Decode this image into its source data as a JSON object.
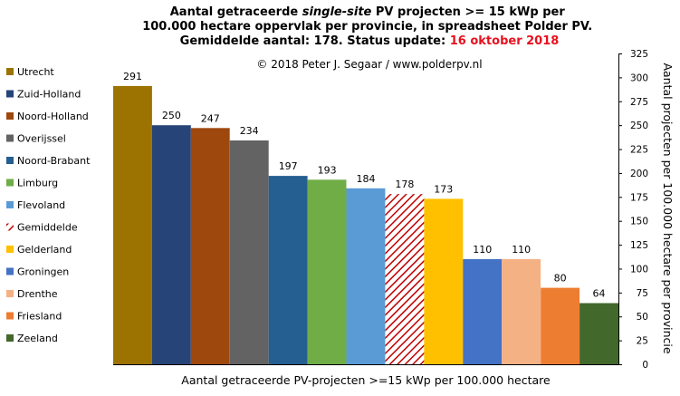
{
  "chart_data": {
    "type": "bar",
    "title_lines": [
      {
        "parts": [
          {
            "text": "Aantal getraceerde ",
            "style": "normal"
          },
          {
            "text": "single-site",
            "style": "italic"
          },
          {
            "text": " PV projecten >= 15 kWp per",
            "style": "normal"
          }
        ]
      },
      {
        "parts": [
          {
            "text": "100.000 hectare oppervlak per provincie, in spreadsheet Polder PV.",
            "style": "normal"
          }
        ]
      },
      {
        "parts": [
          {
            "text": "Gemiddelde aantal: 178. Status update: ",
            "style": "normal"
          },
          {
            "text": "16 oktober 2018",
            "style": "red"
          }
        ]
      }
    ],
    "annotation": "© 2018 Peter J. Segaar / www.polderpv.nl",
    "xlabel": "Aantal getraceerde PV-projecten >=15 kWp per 100.000 hectare",
    "ylabel": "Aantal projecten per 100.000 hectare per provincie",
    "ylim": [
      0,
      325
    ],
    "yticks": [
      0,
      25,
      50,
      75,
      100,
      125,
      150,
      175,
      200,
      225,
      250,
      275,
      300,
      325
    ],
    "y_axis_side": "right",
    "legend_position": "left",
    "grid": false,
    "series": [
      {
        "name": "Utrecht",
        "value": 291,
        "color": "#9c7300",
        "pattern": "solid"
      },
      {
        "name": "Zuid-Holland",
        "value": 250,
        "color": "#264478",
        "pattern": "solid"
      },
      {
        "name": "Noord-Holland",
        "value": 247,
        "color": "#9e480e",
        "pattern": "solid"
      },
      {
        "name": "Overijssel",
        "value": 234,
        "color": "#636363",
        "pattern": "solid"
      },
      {
        "name": "Noord-Brabant",
        "value": 197,
        "color": "#255e91",
        "pattern": "solid"
      },
      {
        "name": "Limburg",
        "value": 193,
        "color": "#70ad47",
        "pattern": "solid"
      },
      {
        "name": "Flevoland",
        "value": 184,
        "color": "#5b9bd5",
        "pattern": "solid"
      },
      {
        "name": "Gemiddelde",
        "value": 178,
        "color": "#c00000",
        "pattern": "hatched"
      },
      {
        "name": "Gelderland",
        "value": 173,
        "color": "#ffc000",
        "pattern": "solid"
      },
      {
        "name": "Groningen",
        "value": 110,
        "color": "#4472c4",
        "pattern": "solid"
      },
      {
        "name": "Drenthe",
        "value": 110,
        "color": "#f4b183",
        "pattern": "solid"
      },
      {
        "name": "Friesland",
        "value": 80,
        "color": "#ed7d31",
        "pattern": "solid"
      },
      {
        "name": "Zeeland",
        "value": 64,
        "color": "#43682b",
        "pattern": "solid"
      }
    ]
  }
}
